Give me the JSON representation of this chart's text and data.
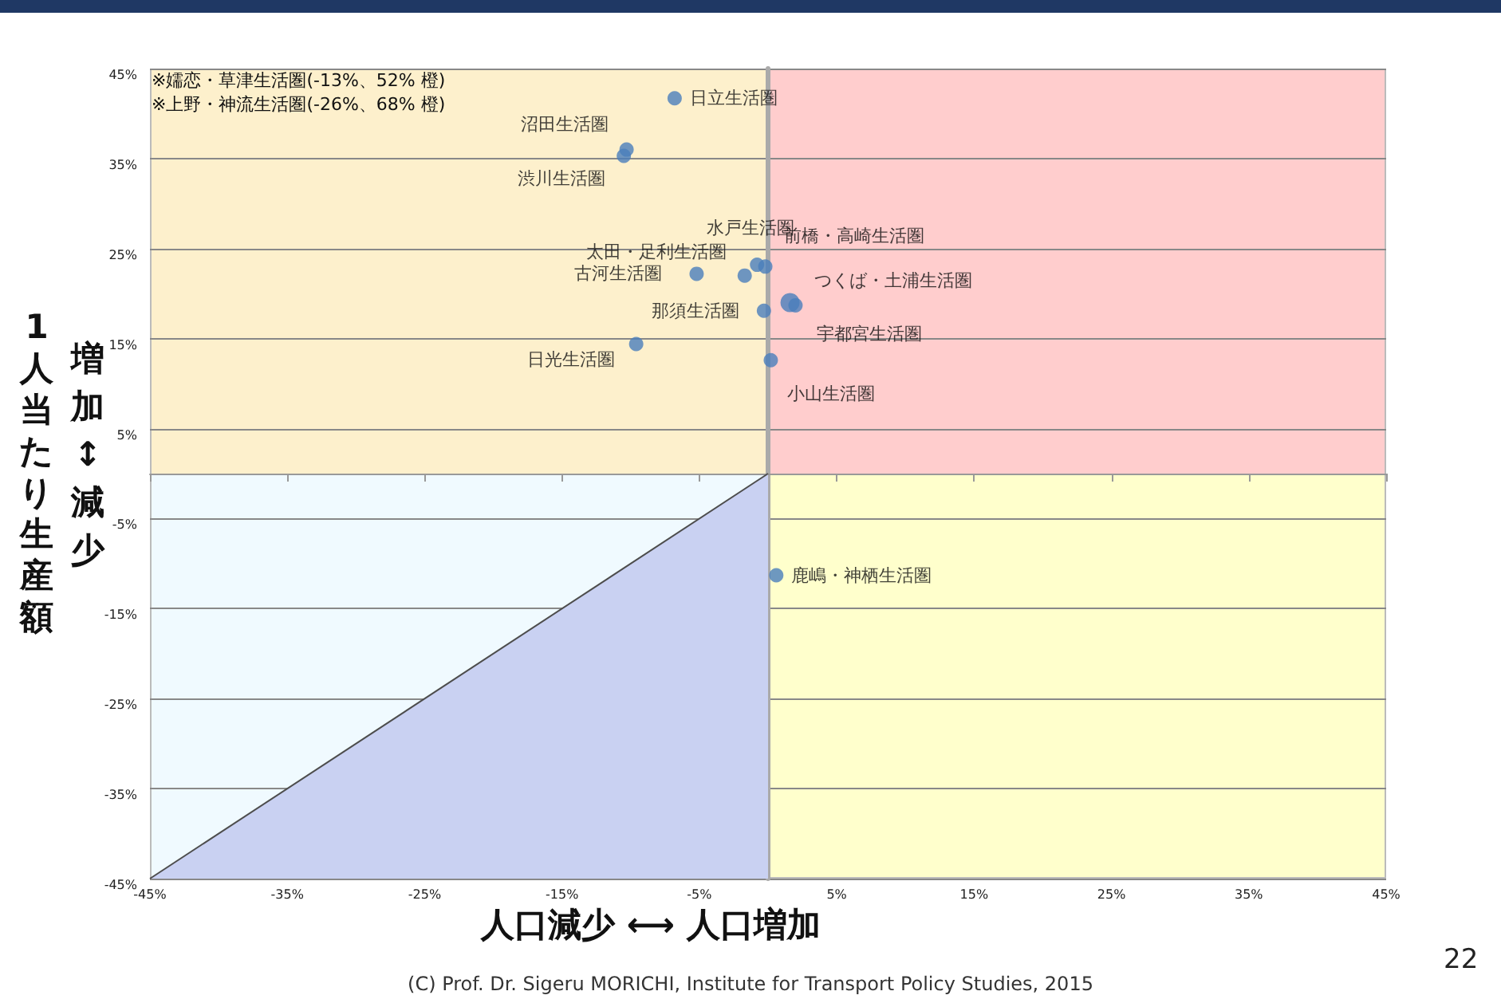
{
  "chart_data": {
    "type": "scatter",
    "xlabel": "人口減少 ⟷ 人口増加",
    "ylabel": "1人当たり生産額",
    "annotations": [
      "※嬬恋・草津生活圏(-13%、52%  橙)",
      "※上野・神流生活圏(-26%、68%  橙)",
      "増加↕減少",
      "(C) Prof. Dr. Sigeru MORICHI, Institute for Transport Policy Studies, 2015",
      "22"
    ],
    "xlim": [
      -45,
      45
    ],
    "ylim": [
      -45,
      45
    ],
    "xticks": [
      {
        "value": -45,
        "label": "-45%"
      },
      {
        "value": -35,
        "label": "-35%"
      },
      {
        "value": -25,
        "label": "-25%"
      },
      {
        "value": -15,
        "label": "-15%"
      },
      {
        "value": -5,
        "label": "-5%"
      },
      {
        "value": 5,
        "label": "5%"
      },
      {
        "value": 15,
        "label": "15%"
      },
      {
        "value": 25,
        "label": "25%"
      },
      {
        "value": 35,
        "label": "35%"
      },
      {
        "value": 45,
        "label": "45%"
      }
    ],
    "yticks": [
      {
        "value": -45,
        "label": "-45%"
      },
      {
        "value": -35,
        "label": "-35%"
      },
      {
        "value": -25,
        "label": "-25%"
      },
      {
        "value": -15,
        "label": "-15%"
      },
      {
        "value": -5,
        "label": "-5%"
      },
      {
        "value": 5,
        "label": "5%"
      },
      {
        "value": 15,
        "label": "15%"
      },
      {
        "value": 25,
        "label": "25%"
      },
      {
        "value": 35,
        "label": "35%"
      },
      {
        "value": 45,
        "label": "45%"
      }
    ],
    "grid": "y",
    "legend": false,
    "marker": "circle",
    "series": [
      {
        "type": "area",
        "marker": "none",
        "color": "#c9d1f2",
        "x": [
          -45,
          0
        ],
        "values": [
          -45,
          0
        ]
      },
      {
        "name": "日立生活圏",
        "color": "#4a7ebb",
        "x": [
          -6.8
        ],
        "values": [
          41.7
        ]
      },
      {
        "name": "沼田生活圏",
        "color": "#4a7ebb",
        "x": [
          -10.3
        ],
        "values": [
          36.0
        ]
      },
      {
        "name": "渋川生活圏",
        "color": "#4a7ebb",
        "x": [
          -10.5
        ],
        "values": [
          35.3
        ]
      },
      {
        "name": "水戸生活圏",
        "color": "#4a7ebb",
        "x": [
          -0.8
        ],
        "values": [
          23.2
        ]
      },
      {
        "name": "前橋・高崎生活圏",
        "color": "#4a7ebb",
        "x": [
          -0.2
        ],
        "values": [
          23.0
        ]
      },
      {
        "name": "太田・足利生活圏",
        "color": "#4a7ebb",
        "x": [
          -1.7
        ],
        "values": [
          22.0
        ]
      },
      {
        "name": "古河生活圏",
        "color": "#4a7ebb",
        "x": [
          -5.2
        ],
        "values": [
          22.2
        ]
      },
      {
        "name": "那須生活圏",
        "color": "#4a7ebb",
        "x": [
          -0.3
        ],
        "values": [
          18.1
        ]
      },
      {
        "name": "日光生活圏",
        "color": "#4a7ebb",
        "x": [
          -9.6
        ],
        "values": [
          14.4
        ]
      },
      {
        "name": "小山生活圏",
        "color": "#4a7ebb",
        "x": [
          0.2
        ],
        "values": [
          12.6
        ]
      },
      {
        "name": "つくば・土浦生活圏",
        "color": "#4a7ebb",
        "x": [
          1.6
        ],
        "values": [
          19.0
        ]
      },
      {
        "name": "宇都宮生活圏",
        "color": "#4a7ebb",
        "x": [
          2.0
        ],
        "values": [
          18.7
        ]
      },
      {
        "name": "鹿嶋・神栖生活圏",
        "color": "#4a7ebb",
        "x": [
          0.6
        ],
        "values": [
          -11.3
        ]
      }
    ]
  }
}
